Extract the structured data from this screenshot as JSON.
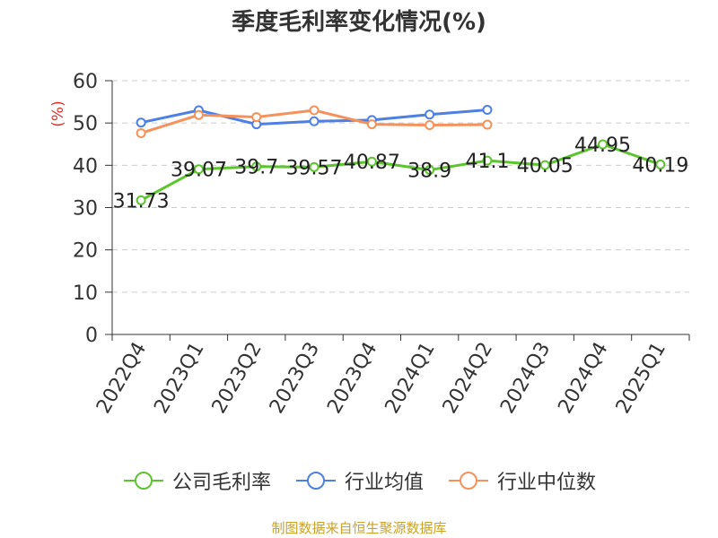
{
  "chart_data": {
    "type": "line",
    "title": "季度毛利率变化情况(%)",
    "ylabel": "(%)",
    "categories": [
      "2022Q4",
      "2023Q1",
      "2023Q2",
      "2023Q3",
      "2023Q4",
      "2024Q1",
      "2024Q2",
      "2024Q3",
      "2024Q4",
      "2025Q1"
    ],
    "ylim": [
      0,
      60
    ],
    "yticks": [
      0,
      10,
      20,
      30,
      40,
      50,
      60
    ],
    "grid": true,
    "legend_position": "bottom",
    "series": [
      {
        "name": "公司毛利率",
        "color": "#5cc42c",
        "values": [
          31.73,
          39.07,
          39.7,
          39.57,
          40.87,
          38.9,
          41.1,
          40.05,
          44.95,
          40.19
        ],
        "labels": [
          "31.73",
          "39.07",
          "39.7",
          "39.57",
          "40.87",
          "38.9",
          "41.1",
          "40.05",
          "44.95",
          "40.19"
        ]
      },
      {
        "name": "行业均值",
        "color": "#4e7fe3",
        "values": [
          50.1,
          53.0,
          49.7,
          50.4,
          50.7,
          52.0,
          53.1,
          null,
          null,
          null
        ]
      },
      {
        "name": "行业中位数",
        "color": "#f5915a",
        "values": [
          47.6,
          51.9,
          51.4,
          53.0,
          49.7,
          49.5,
          49.6,
          null,
          null,
          null
        ]
      }
    ],
    "source": "制图数据来自恒生聚源数据库"
  }
}
